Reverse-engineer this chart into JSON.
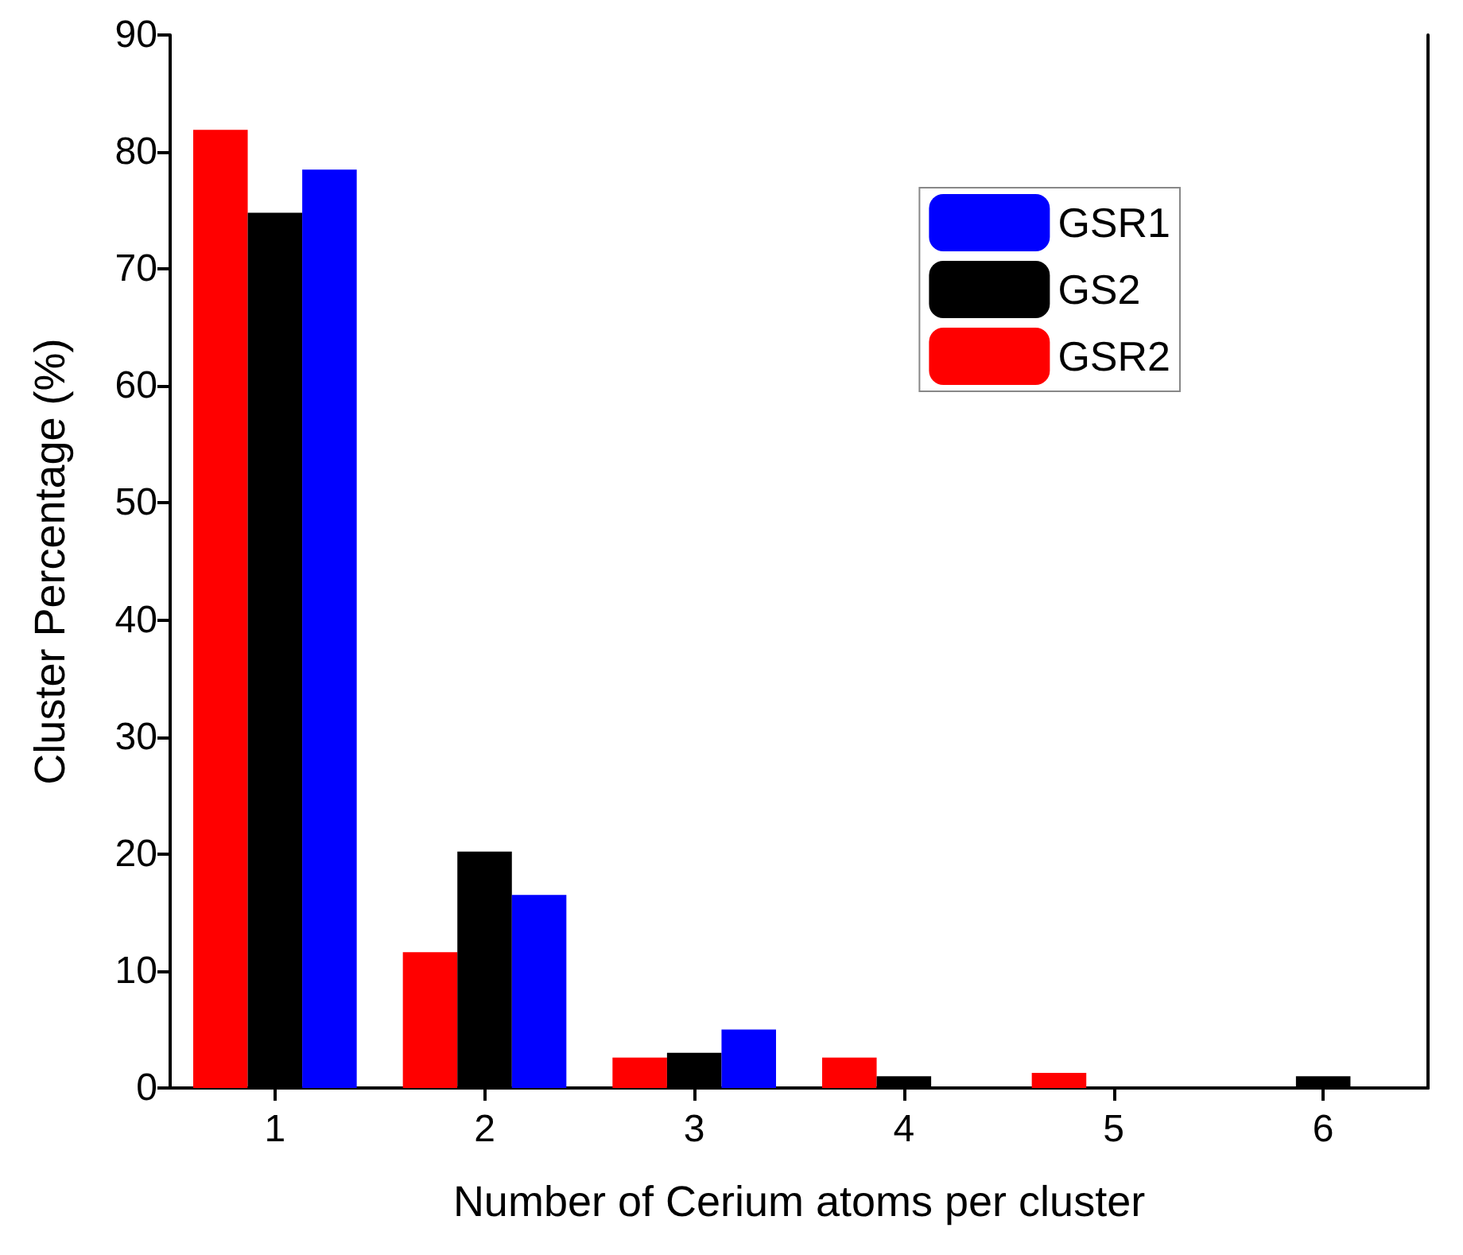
{
  "chart_data": {
    "type": "bar",
    "xlabel": "Number of Cerium atoms per cluster",
    "ylabel": "Cluster Percentage (%)",
    "categories": [
      "1",
      "2",
      "3",
      "4",
      "5",
      "6"
    ],
    "series": [
      {
        "name": "GSR2",
        "color": "#ff0000",
        "values": [
          81.9,
          11.6,
          2.6,
          2.6,
          1.3,
          0
        ]
      },
      {
        "name": "GS2",
        "color": "#000000",
        "values": [
          74.8,
          20.2,
          3.0,
          1.0,
          0,
          1.0
        ]
      },
      {
        "name": "GSR1",
        "color": "#0000ff",
        "values": [
          78.5,
          16.5,
          5.0,
          0,
          0,
          0
        ]
      }
    ],
    "ylim": [
      0,
      90
    ],
    "yticks": [
      0,
      10,
      20,
      30,
      40,
      50,
      60,
      70,
      80,
      90
    ],
    "grid": false,
    "legend": "top right"
  }
}
